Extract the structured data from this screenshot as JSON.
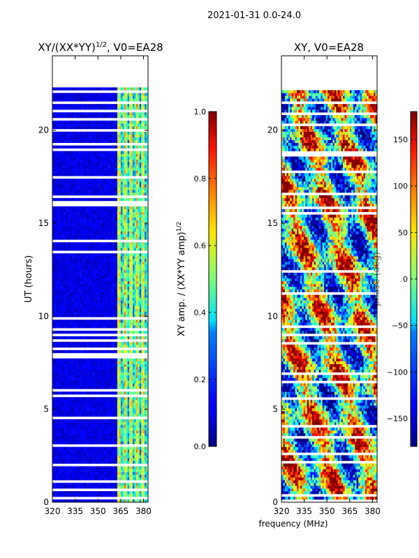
{
  "suptitle": "2021-01-31 0.0-24.0",
  "shared_xlabel": "frequency (MHz)",
  "chart_data": [
    {
      "type": "heatmap",
      "title": "XY/(XX*YY)",
      "title_exponent": "1/2",
      "title_suffix": ", V0=EA28",
      "xlabel": "",
      "ylabel": "UT (hours)",
      "xlim": [
        320,
        383
      ],
      "ylim": [
        0,
        24
      ],
      "xticks": [
        320,
        335,
        350,
        365,
        380
      ],
      "yticks": [
        0,
        5,
        10,
        15,
        20
      ],
      "data_extent_hours": [
        0,
        22.3
      ],
      "colorbar": {
        "label": "XY amp. / (XX*YY amp)",
        "label_exponent": "1/2",
        "range": [
          0.0,
          1.0
        ],
        "ticks": [
          0.0,
          0.2,
          0.4,
          0.6,
          0.8,
          1.0
        ],
        "tick_labels": [
          "0.0",
          "0.2",
          "0.4",
          "0.6",
          "0.8",
          "1.0"
        ],
        "colormap": "jet"
      }
    },
    {
      "type": "heatmap",
      "title": "XY, V0=EA28",
      "xlabel": "frequency (MHz)",
      "ylabel": "",
      "xlim": [
        320,
        383
      ],
      "ylim": [
        0,
        24
      ],
      "xticks": [
        320,
        335,
        350,
        365,
        380
      ],
      "yticks": [
        0,
        5,
        10,
        15,
        20
      ],
      "data_extent_hours": [
        0,
        22.3
      ],
      "colorbar": {
        "label": "phase (deg)",
        "range": [
          -180,
          180
        ],
        "ticks": [
          -150,
          -100,
          -50,
          0,
          50,
          100,
          150
        ],
        "tick_labels": [
          "−150",
          "−100",
          "−50",
          "0",
          "50",
          "100",
          "150"
        ],
        "colormap": "jet"
      }
    }
  ]
}
